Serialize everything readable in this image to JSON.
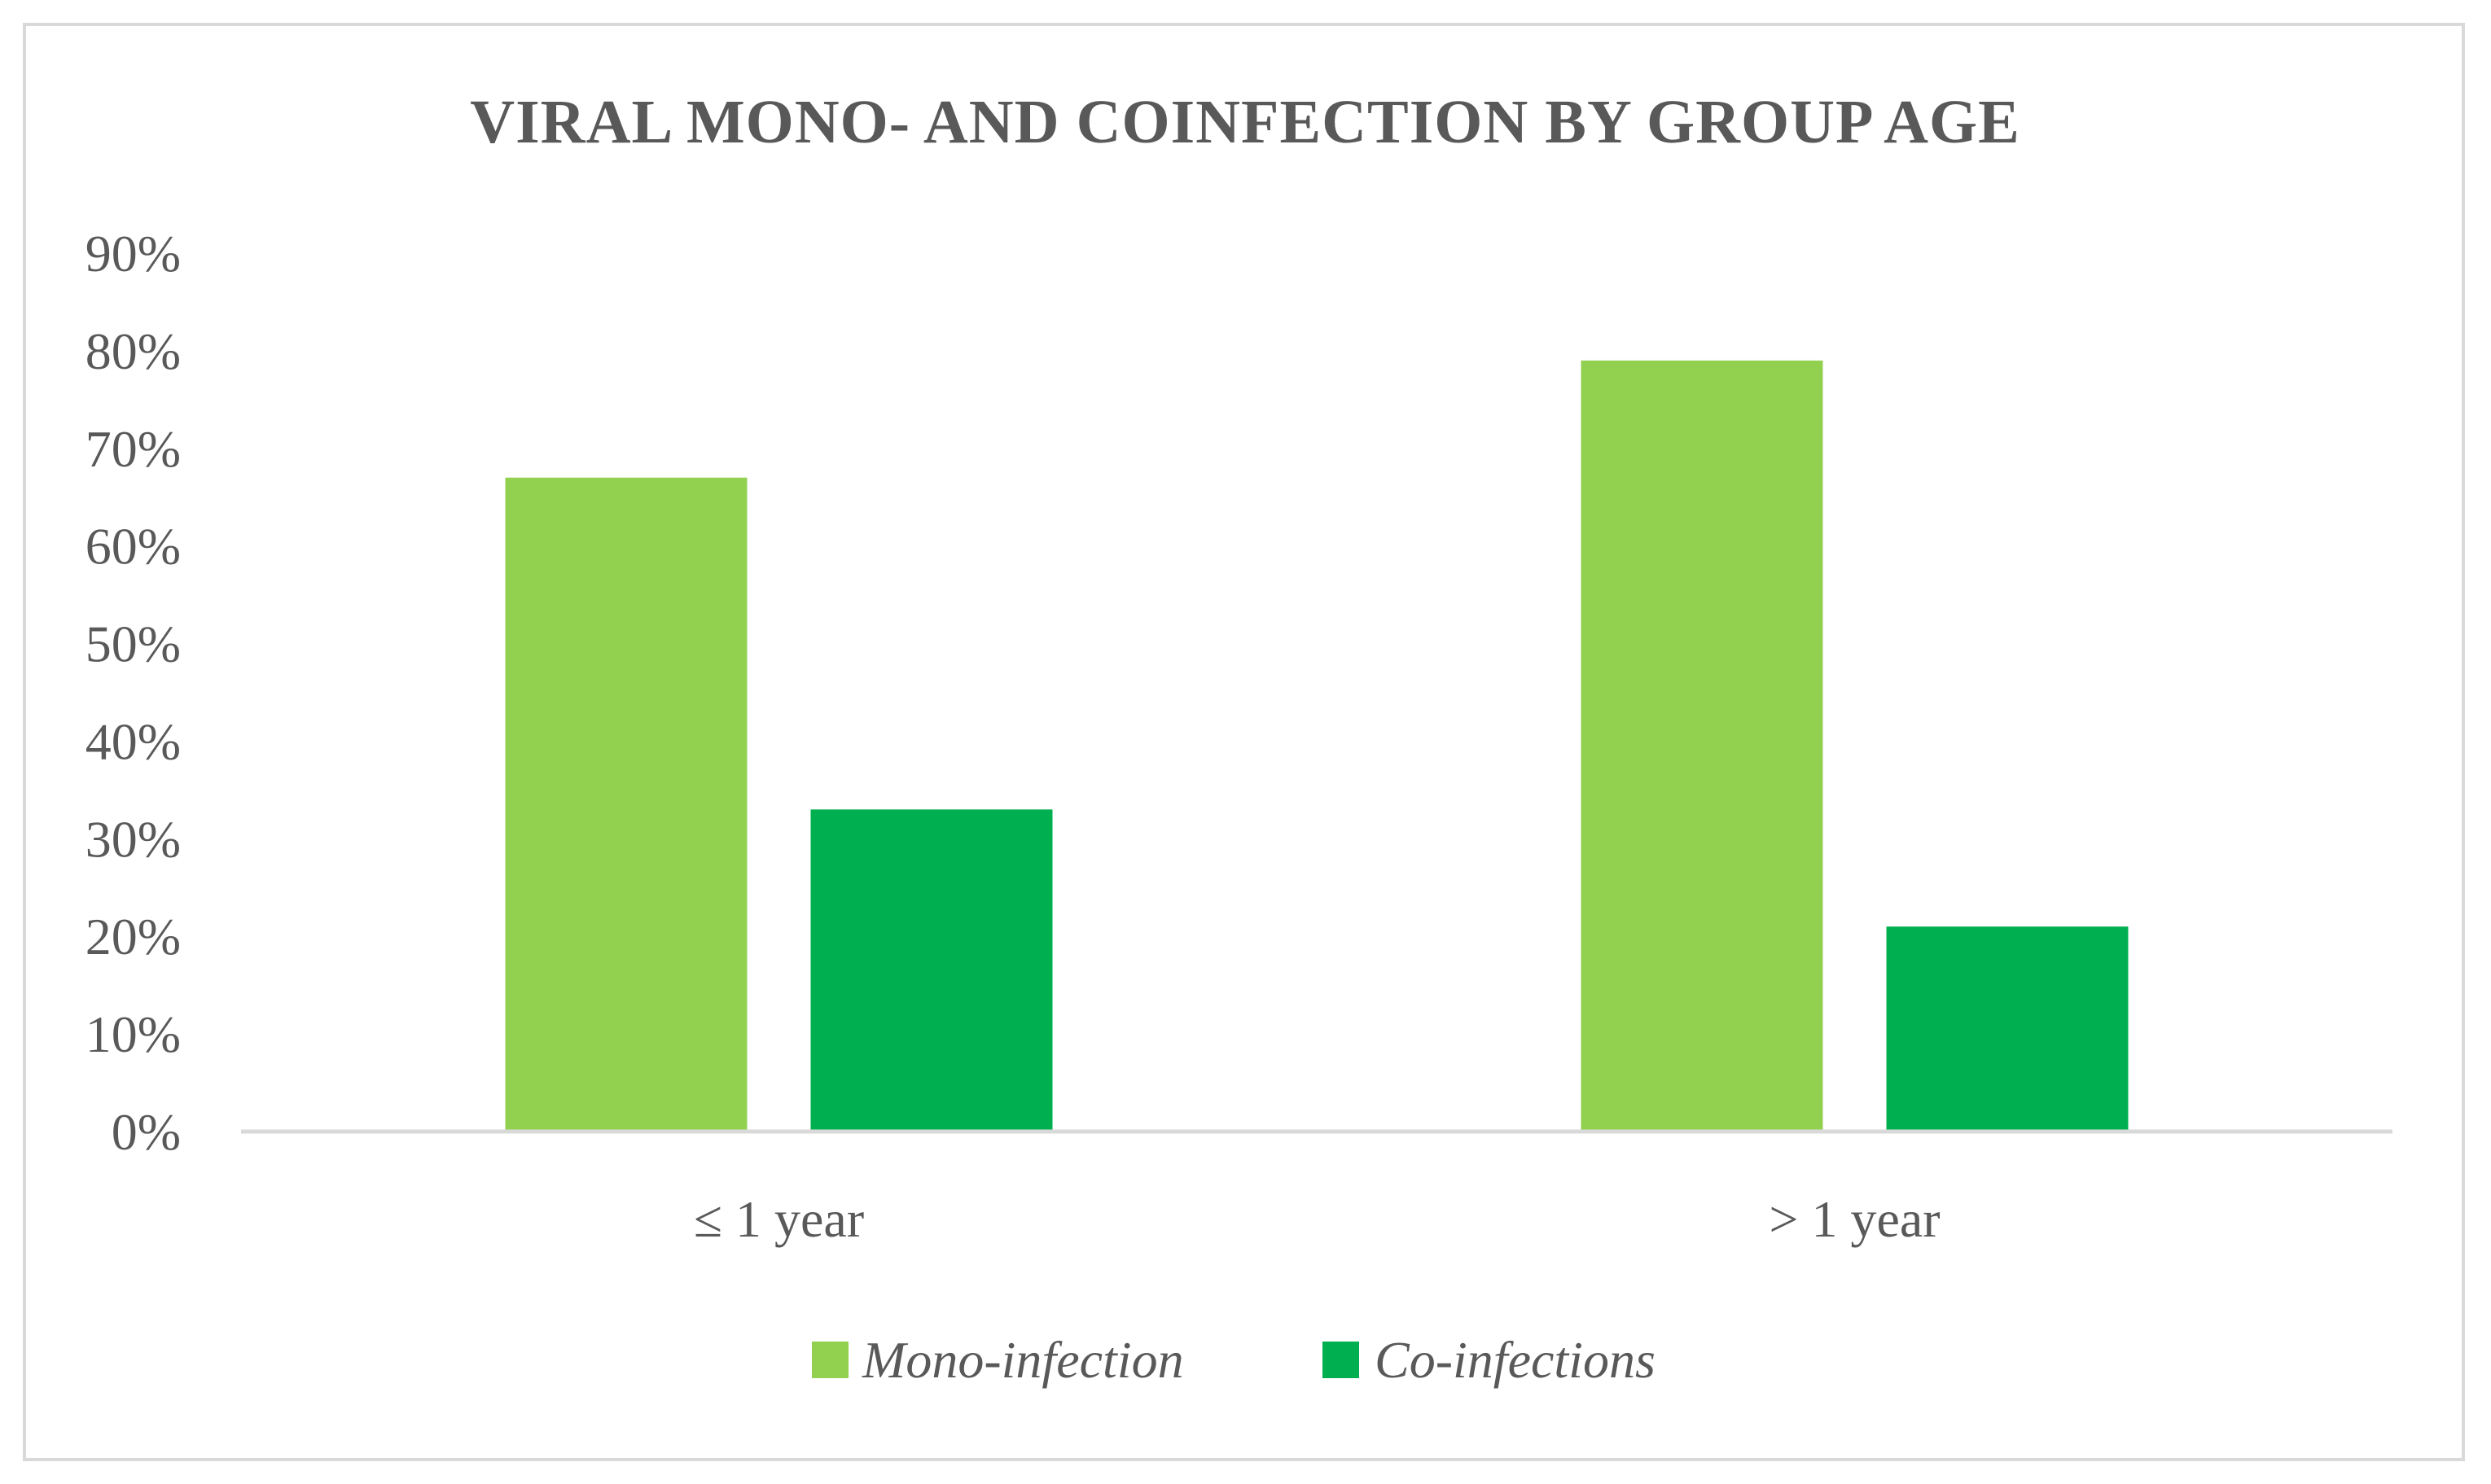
{
  "chart_data": {
    "type": "bar",
    "title": "VIRAL MONO- AND COINFECTION BY GROUP AGE",
    "categories": [
      "≤ 1 year",
      "> 1 year"
    ],
    "series": [
      {
        "name": "Mono-infection",
        "color": "#92d050",
        "values": [
          67,
          79
        ]
      },
      {
        "name": "Co-infections",
        "color": "#00b050",
        "values": [
          33,
          21
        ]
      }
    ],
    "ylim": [
      0,
      90
    ],
    "ytick_step": 10,
    "ytick_labels": [
      "0%",
      "10%",
      "20%",
      "30%",
      "40%",
      "50%",
      "60%",
      "70%",
      "80%",
      "90%"
    ],
    "xlabel": "",
    "ylabel": "",
    "grid": false,
    "legend_position": "bottom",
    "axis_color": "#d9d9d9"
  }
}
